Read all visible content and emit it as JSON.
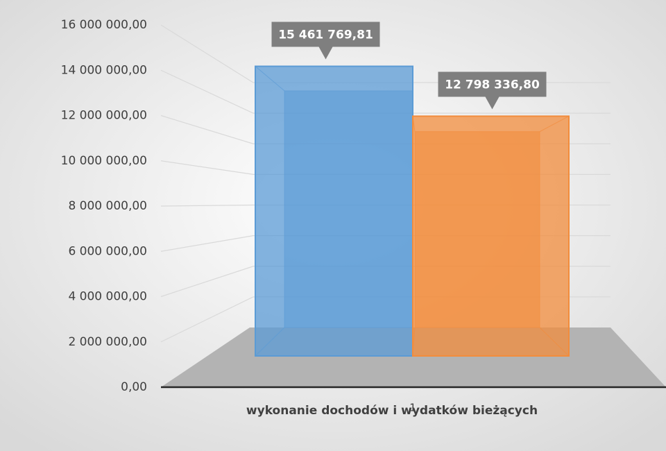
{
  "chart_data": {
    "type": "bar3d",
    "x_label": "wykonanie dochodów i wydatków bieżących",
    "categories": [
      "1"
    ],
    "series": [
      {
        "color": "#5b9bd5",
        "values": [
          15461769.81
        ],
        "value_labels": [
          "15 461 769,81"
        ]
      },
      {
        "color": "#f28c3c",
        "values": [
          12798336.8
        ],
        "value_labels": [
          "12 798 336,80"
        ]
      }
    ],
    "ylim": [
      0,
      16000000
    ],
    "yticks": [
      {
        "value": 0,
        "label": "0,00"
      },
      {
        "value": 2000000,
        "label": "2 000 000,00"
      },
      {
        "value": 4000000,
        "label": "4 000 000,00"
      },
      {
        "value": 6000000,
        "label": "6 000 000,00"
      },
      {
        "value": 8000000,
        "label": "8 000 000,00"
      },
      {
        "value": 10000000,
        "label": "10 000 000,00"
      },
      {
        "value": 12000000,
        "label": "12 000 000,00"
      },
      {
        "value": 14000000,
        "label": "14 000 000,00"
      },
      {
        "value": 16000000,
        "label": "16 000 000,00"
      }
    ],
    "grid": true
  }
}
